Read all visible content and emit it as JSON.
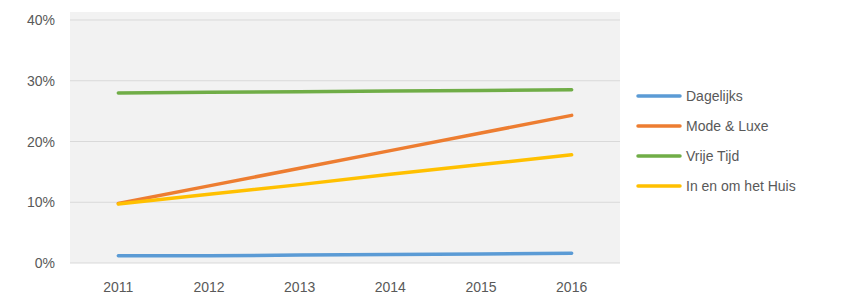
{
  "chart_data": {
    "type": "line",
    "categories": [
      "2011",
      "2012",
      "2013",
      "2014",
      "2015",
      "2016"
    ],
    "series": [
      {
        "name": "Dagelijks",
        "color": "#5b9bd5",
        "values": [
          1.2,
          1.2,
          1.3,
          1.4,
          1.5,
          1.6
        ]
      },
      {
        "name": "Mode & Luxe",
        "color": "#ed7d31",
        "values": [
          9.8,
          12.7,
          15.6,
          18.5,
          21.4,
          24.3
        ]
      },
      {
        "name": "Vrije Tijd",
        "color": "#70ad47",
        "values": [
          28.0,
          28.1,
          28.2,
          28.3,
          28.4,
          28.5
        ]
      },
      {
        "name": "In en om het Huis",
        "color": "#ffc000",
        "values": [
          9.7,
          11.3,
          12.9,
          14.6,
          16.2,
          17.8
        ]
      }
    ],
    "ylim": [
      0,
      40
    ],
    "yticks": [
      {
        "value": 0,
        "label": "0%"
      },
      {
        "value": 10,
        "label": "10%"
      },
      {
        "value": 20,
        "label": "20%"
      },
      {
        "value": 30,
        "label": "30%"
      },
      {
        "value": 40,
        "label": "40%"
      }
    ],
    "grid": true,
    "legend": "right"
  }
}
